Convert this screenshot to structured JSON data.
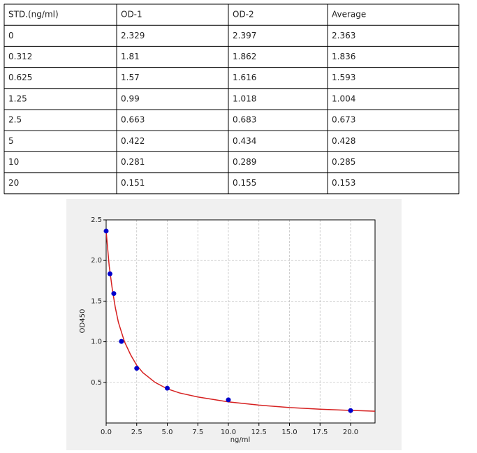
{
  "table": {
    "header": [
      "STD.(ng/ml)",
      "OD-1",
      "OD-2",
      "Average"
    ],
    "rows": [
      [
        "0",
        "2.329",
        "2.397",
        "2.363"
      ],
      [
        "0.312",
        "1.81",
        "1.862",
        "1.836"
      ],
      [
        "0.625",
        "1.57",
        "1.616",
        "1.593"
      ],
      [
        "1.25",
        "0.99",
        "1.018",
        "1.004"
      ],
      [
        "2.5",
        "0.663",
        "0.683",
        "0.673"
      ],
      [
        "5",
        "0.422",
        "0.434",
        "0.428"
      ],
      [
        "10",
        "0.281",
        "0.289",
        "0.285"
      ],
      [
        "20",
        "0.151",
        "0.155",
        "0.153"
      ]
    ]
  },
  "chart_data": {
    "type": "scatter",
    "x_label": "ng/ml",
    "y_label": "OD450",
    "x": [
      0,
      0.312,
      0.625,
      1.25,
      2.5,
      5,
      10,
      20
    ],
    "series": [
      {
        "color": "#0000cc",
        "values": [
          2.363,
          1.836,
          1.593,
          1.004,
          0.673,
          0.428,
          0.285,
          0.153
        ]
      }
    ],
    "curve": {
      "color": "#d62020",
      "x": [
        0,
        0.25,
        0.5,
        0.75,
        1,
        1.5,
        2,
        2.5,
        3,
        4,
        5,
        6,
        7.5,
        10,
        12.5,
        15,
        17.5,
        20,
        22
      ],
      "values": [
        2.36,
        1.93,
        1.65,
        1.42,
        1.24,
        1.0,
        0.84,
        0.71,
        0.62,
        0.5,
        0.42,
        0.37,
        0.32,
        0.26,
        0.22,
        0.19,
        0.17,
        0.155,
        0.145
      ]
    },
    "xlim": [
      0,
      22
    ],
    "ylim": [
      0,
      2.5
    ],
    "xticks": [
      {
        "value": 0,
        "label": "0.0"
      },
      2.5,
      {
        "value": 5,
        "label": "5.0"
      },
      7.5,
      {
        "value": 10,
        "label": "10.0"
      },
      12.5,
      {
        "value": 15,
        "label": "15.0"
      },
      17.5,
      {
        "value": 20,
        "label": "20.0"
      }
    ],
    "yticks": [
      0.5,
      {
        "value": 1,
        "label": "1.0"
      },
      1.5,
      {
        "value": 2,
        "label": "2.0"
      },
      2.5
    ],
    "grid": true
  }
}
